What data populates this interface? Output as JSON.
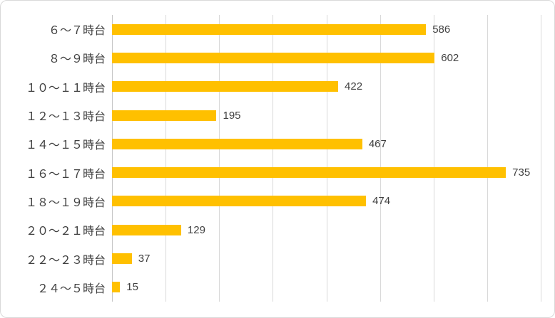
{
  "chart_data": {
    "type": "bar",
    "orientation": "horizontal",
    "title": "",
    "xlabel": "",
    "ylabel": "",
    "categories": [
      "６～７時台",
      "８～９時台",
      "１０～１１時台",
      "１２～１３時台",
      "１４～１５時台",
      "１６～１７時台",
      "１８～１９時台",
      "２０～２１時台",
      "２２～２３時台",
      "２４～５時台"
    ],
    "values": [
      586,
      602,
      422,
      195,
      467,
      735,
      474,
      129,
      37,
      15
    ],
    "data_labels": [
      "586",
      "602",
      "422",
      "195",
      "467",
      "735",
      "474",
      "129",
      "37",
      "15"
    ],
    "xlim": [
      0,
      800
    ],
    "grid_step": 100,
    "grid": true,
    "legend": false,
    "bar_color": "#FFC000",
    "label_color": "#404040",
    "gridline_color": "#D9D9D9",
    "border_color": "#D9D9D9",
    "background": "#FFFFFF"
  }
}
